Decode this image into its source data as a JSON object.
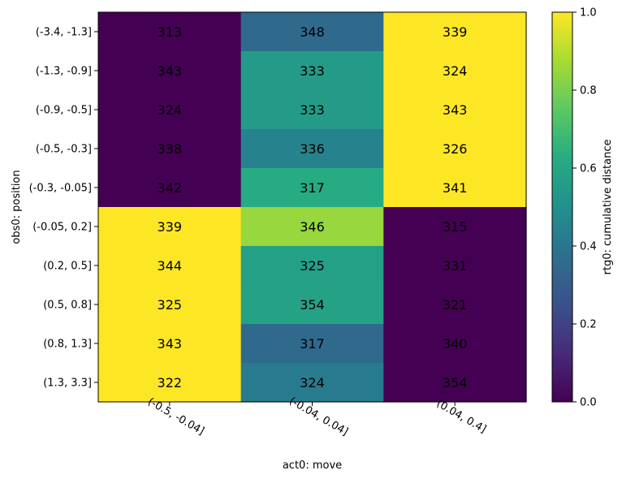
{
  "chart_data": {
    "type": "heatmap",
    "xlabel": "act0: move",
    "ylabel": "obs0: position",
    "colorbar_label": "rtg0: cumulative distance",
    "colormap": "viridis",
    "x_categories": [
      "(-0.5, -0.04]",
      "(-0.04, 0.04]",
      "(0.04, 0.4]"
    ],
    "y_categories": [
      "(-3.4, -1.3]",
      "(-1.3, -0.9]",
      "(-0.9, -0.5]",
      "(-0.5, -0.3]",
      "(-0.3, -0.05]",
      "(-0.05, 0.2]",
      "(0.2, 0.5]",
      "(0.5, 0.8]",
      "(0.8, 1.3]",
      "(1.3, 3.3]"
    ],
    "color_values": [
      [
        0.0,
        0.35,
        1.0
      ],
      [
        0.0,
        0.55,
        1.0
      ],
      [
        0.0,
        0.55,
        1.0
      ],
      [
        0.0,
        0.45,
        1.0
      ],
      [
        0.0,
        0.62,
        1.0
      ],
      [
        1.0,
        0.85,
        0.0
      ],
      [
        1.0,
        0.57,
        0.0
      ],
      [
        1.0,
        0.58,
        0.0
      ],
      [
        1.0,
        0.35,
        0.0
      ],
      [
        1.0,
        0.42,
        0.0
      ]
    ],
    "cell_labels": [
      [
        "313",
        "348",
        "339"
      ],
      [
        "343",
        "333",
        "324"
      ],
      [
        "324",
        "333",
        "343"
      ],
      [
        "338",
        "336",
        "326"
      ],
      [
        "342",
        "317",
        "341"
      ],
      [
        "339",
        "346",
        "315"
      ],
      [
        "344",
        "325",
        "331"
      ],
      [
        "325",
        "354",
        "321"
      ],
      [
        "343",
        "317",
        "340"
      ],
      [
        "322",
        "324",
        "354"
      ]
    ],
    "colorbar_range": [
      0.0,
      1.0
    ],
    "colorbar_ticks": [
      "0.0",
      "0.2",
      "0.4",
      "0.6",
      "0.8",
      "1.0"
    ]
  }
}
